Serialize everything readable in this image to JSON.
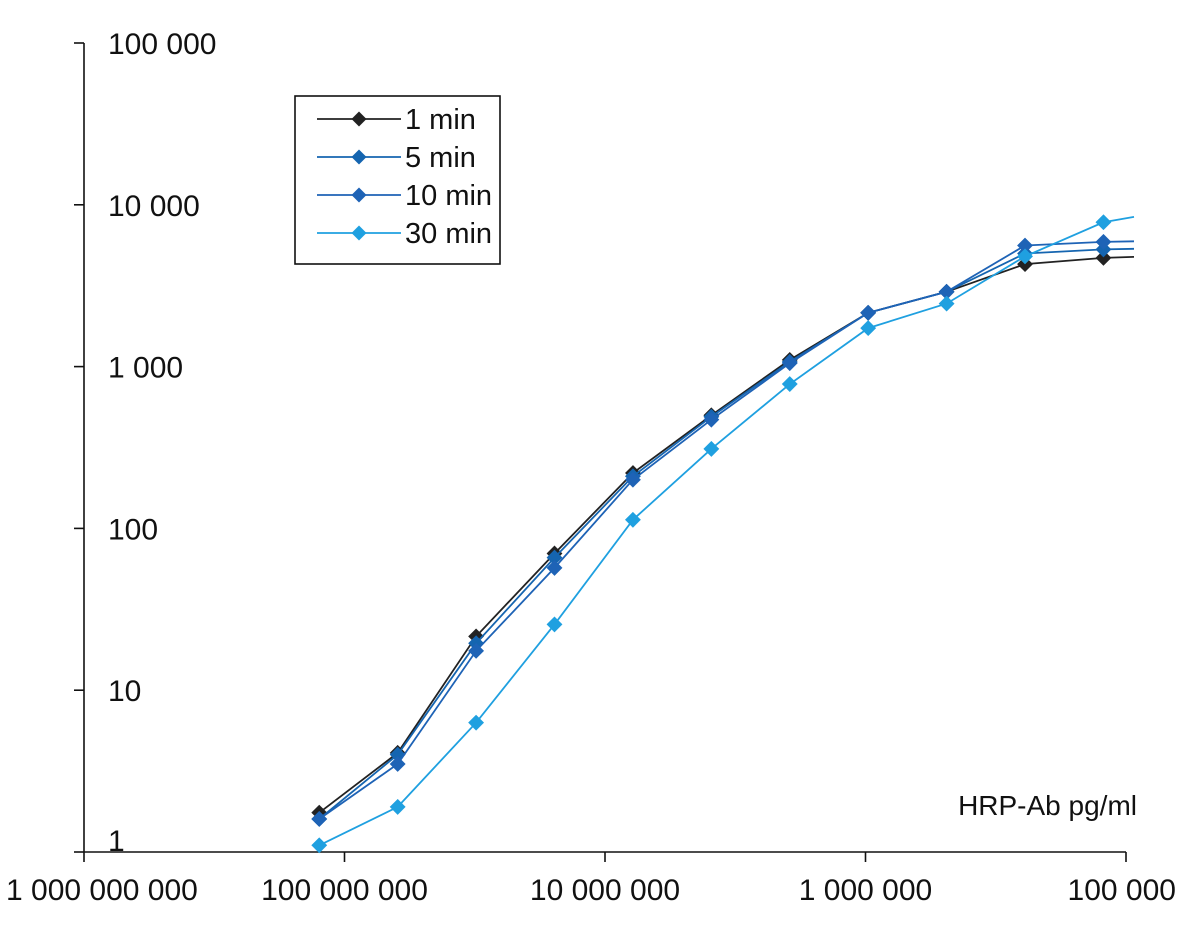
{
  "chart_data": {
    "type": "line",
    "xlabel": "HRP-Ab pg/ml",
    "ylabel": "",
    "x_scale": "log",
    "x_reversed": true,
    "y_scale": "log",
    "xlim": [
      1000000000,
      100000
    ],
    "ylim": [
      1,
      100000
    ],
    "x_ticks": [
      {
        "value": 1000000000,
        "label": "1 000 000 000"
      },
      {
        "value": 100000000,
        "label": "100 000 000"
      },
      {
        "value": 10000000,
        "label": "10 000 000"
      },
      {
        "value": 1000000,
        "label": "1 000 000"
      },
      {
        "value": 100000,
        "label": "100 000"
      }
    ],
    "y_ticks": [
      {
        "value": 1,
        "label": "1"
      },
      {
        "value": 10,
        "label": "10"
      },
      {
        "value": 100,
        "label": "100"
      },
      {
        "value": 1000,
        "label": "1 000"
      },
      {
        "value": 10000,
        "label": "10 000"
      },
      {
        "value": 100000,
        "label": "100 000"
      }
    ],
    "grid": false,
    "legend_position": "top-left",
    "x": [
      125000000,
      62500000,
      31250000,
      15625000,
      7812500,
      3906250,
      1953125,
      976562,
      488281,
      244141,
      122070
    ],
    "series": [
      {
        "name": "1 min",
        "color": "#222222",
        "values": [
          1.75,
          4.1,
          21.5,
          70,
          220,
          500,
          1100,
          2150,
          2900,
          4300,
          4700
        ]
      },
      {
        "name": "5 min",
        "color": "#1565b0",
        "values": [
          1.6,
          4.0,
          19.5,
          66,
          210,
          490,
          1070,
          2150,
          2900,
          5000,
          5300
        ]
      },
      {
        "name": "10 min",
        "color": "#1e63b6",
        "values": [
          1.6,
          3.5,
          17.5,
          57,
          200,
          470,
          1050,
          2150,
          2900,
          5600,
          5900
        ]
      },
      {
        "name": "30 min",
        "color": "#1fa0e0",
        "values": [
          1.1,
          1.9,
          6.3,
          25.5,
          113,
          310,
          780,
          1730,
          2450,
          4800,
          7800
        ]
      }
    ]
  }
}
